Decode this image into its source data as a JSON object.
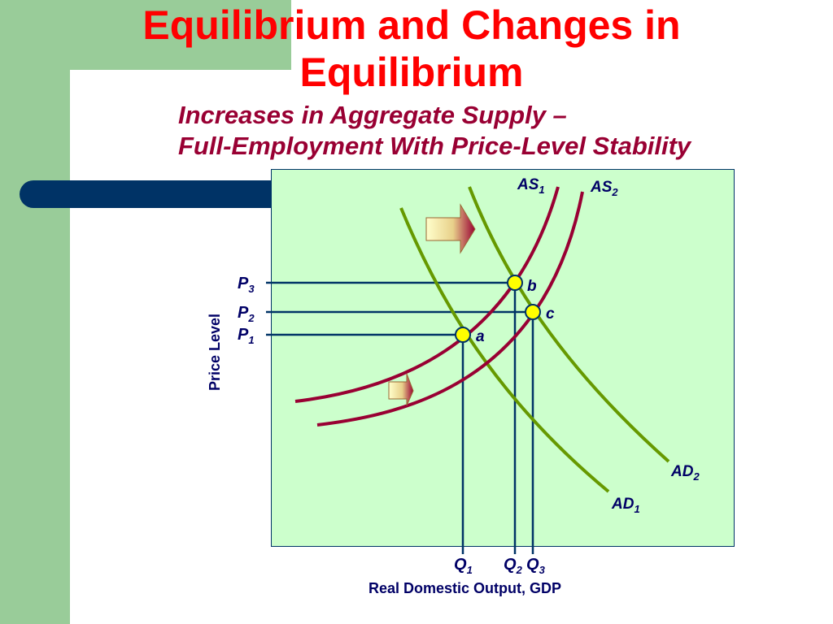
{
  "slide": {
    "title": "Equilibrium and Changes in Equilibrium",
    "subtitle_line1": "Increases in Aggregate Supply –",
    "subtitle_line2": "Full-Employment With Price-Level Stability"
  },
  "diagram": {
    "x_axis_label": "Real Domestic Output, GDP",
    "y_axis_label": "Price Level",
    "price_levels": [
      {
        "main": "P",
        "sub": "3"
      },
      {
        "main": "P",
        "sub": "2"
      },
      {
        "main": "P",
        "sub": "1"
      }
    ],
    "quantities": [
      {
        "main": "Q",
        "sub": "1"
      },
      {
        "main": "Q",
        "sub": "2"
      },
      {
        "main": "Q",
        "sub": "3"
      }
    ],
    "curves": [
      {
        "main": "AS",
        "sub": "1"
      },
      {
        "main": "AS",
        "sub": "2"
      },
      {
        "main": "AD",
        "sub": "1"
      },
      {
        "main": "AD",
        "sub": "2"
      }
    ],
    "points": [
      "a",
      "b",
      "c"
    ],
    "colors": {
      "as_curve": "#990033",
      "ad_curve": "#669900",
      "guide_line": "#003366",
      "point_fill": "#ffff00",
      "plot_background": "#ccffcc",
      "title": "#ff0000",
      "subtitle": "#990033"
    }
  }
}
